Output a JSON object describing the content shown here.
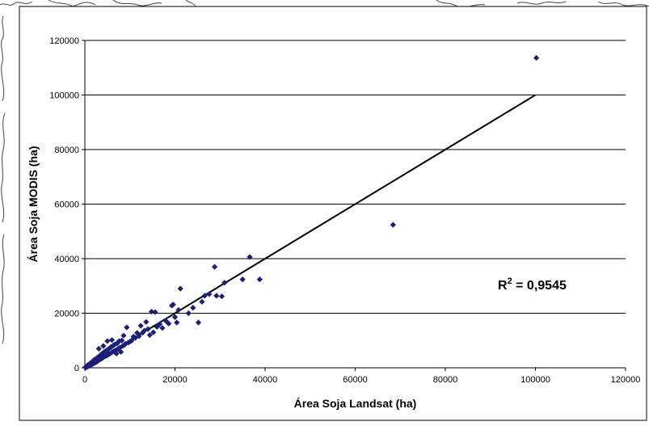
{
  "chart_data": {
    "type": "scatter",
    "xlabel": "Área Soja Landsat (ha)",
    "ylabel": "Área Soja MODIS (ha)",
    "xlim": [
      0,
      120000
    ],
    "ylim": [
      0,
      120000
    ],
    "x_ticks": [
      "0",
      "20000",
      "40000",
      "60000",
      "80000",
      "100000",
      "120000"
    ],
    "y_ticks": [
      "0",
      "20000",
      "40000",
      "60000",
      "80000",
      "100000",
      "120000"
    ],
    "grid": "horizontal",
    "annotation": {
      "prefix": "R",
      "superscript": "2",
      "suffix": " = 0,9545"
    },
    "marker_color": "#1b1f7a",
    "trendline": {
      "x": [
        0,
        100000
      ],
      "y": [
        0,
        100000
      ],
      "color": "#000000"
    },
    "points": [
      [
        100,
        200
      ],
      [
        200,
        100
      ],
      [
        300,
        400
      ],
      [
        400,
        300
      ],
      [
        500,
        800
      ],
      [
        600,
        500
      ],
      [
        700,
        1000
      ],
      [
        800,
        600
      ],
      [
        900,
        1200
      ],
      [
        1000,
        800
      ],
      [
        1100,
        1500
      ],
      [
        1200,
        1000
      ],
      [
        1300,
        1800
      ],
      [
        1400,
        1100
      ],
      [
        1500,
        2000
      ],
      [
        1600,
        1300
      ],
      [
        1700,
        2200
      ],
      [
        1800,
        1500
      ],
      [
        1900,
        2500
      ],
      [
        2000,
        1700
      ],
      [
        2100,
        3000
      ],
      [
        2200,
        1900
      ],
      [
        2300,
        2800
      ],
      [
        2400,
        2000
      ],
      [
        2500,
        3300
      ],
      [
        2600,
        2300
      ],
      [
        2700,
        3600
      ],
      [
        2800,
        2400
      ],
      [
        2900,
        3900
      ],
      [
        3000,
        2700
      ],
      [
        3100,
        7000
      ],
      [
        3200,
        3000
      ],
      [
        3300,
        4400
      ],
      [
        3400,
        3100
      ],
      [
        3500,
        4600
      ],
      [
        3600,
        3300
      ],
      [
        3700,
        5000
      ],
      [
        3800,
        3500
      ],
      [
        3900,
        5300
      ],
      [
        4000,
        3700
      ],
      [
        4100,
        8000
      ],
      [
        4200,
        4000
      ],
      [
        4300,
        5800
      ],
      [
        4500,
        4200
      ],
      [
        4700,
        6200
      ],
      [
        4900,
        4500
      ],
      [
        5000,
        9800
      ],
      [
        5100,
        6700
      ],
      [
        5300,
        5000
      ],
      [
        5500,
        7200
      ],
      [
        5600,
        5200
      ],
      [
        5800,
        7600
      ],
      [
        6000,
        10200
      ],
      [
        6100,
        5800
      ],
      [
        6300,
        8200
      ],
      [
        6500,
        6200
      ],
      [
        6700,
        8600
      ],
      [
        6900,
        6400
      ],
      [
        7000,
        5200
      ],
      [
        7200,
        9000
      ],
      [
        7400,
        7000
      ],
      [
        7600,
        9800
      ],
      [
        7800,
        7400
      ],
      [
        8000,
        5800
      ],
      [
        8200,
        10000
      ],
      [
        8400,
        8000
      ],
      [
        8600,
        11800
      ],
      [
        8800,
        8400
      ],
      [
        9000,
        8800
      ],
      [
        9300,
        14800
      ],
      [
        9600,
        9200
      ],
      [
        10000,
        9600
      ],
      [
        10400,
        10000
      ],
      [
        10800,
        11400
      ],
      [
        11200,
        11000
      ],
      [
        11600,
        12800
      ],
      [
        12000,
        11600
      ],
      [
        12400,
        15400
      ],
      [
        12800,
        12800
      ],
      [
        13200,
        13600
      ],
      [
        13600,
        16800
      ],
      [
        14000,
        14200
      ],
      [
        14400,
        12000
      ],
      [
        14800,
        20600
      ],
      [
        15200,
        13000
      ],
      [
        15600,
        20400
      ],
      [
        16000,
        15000
      ],
      [
        16600,
        16000
      ],
      [
        17200,
        14600
      ],
      [
        18000,
        17200
      ],
      [
        18600,
        16200
      ],
      [
        19300,
        22800
      ],
      [
        19600,
        23200
      ],
      [
        20000,
        18600
      ],
      [
        20400,
        16600
      ],
      [
        20800,
        21200
      ],
      [
        21200,
        29000
      ],
      [
        23000,
        20000
      ],
      [
        24000,
        22000
      ],
      [
        25200,
        16600
      ],
      [
        26000,
        24200
      ],
      [
        26600,
        26400
      ],
      [
        27600,
        27000
      ],
      [
        28800,
        37000
      ],
      [
        29200,
        26400
      ],
      [
        30400,
        26200
      ],
      [
        31000,
        31200
      ],
      [
        35000,
        32400
      ],
      [
        36600,
        40600
      ],
      [
        38800,
        32400
      ],
      [
        68400,
        52400
      ],
      [
        100200,
        113600
      ]
    ]
  }
}
